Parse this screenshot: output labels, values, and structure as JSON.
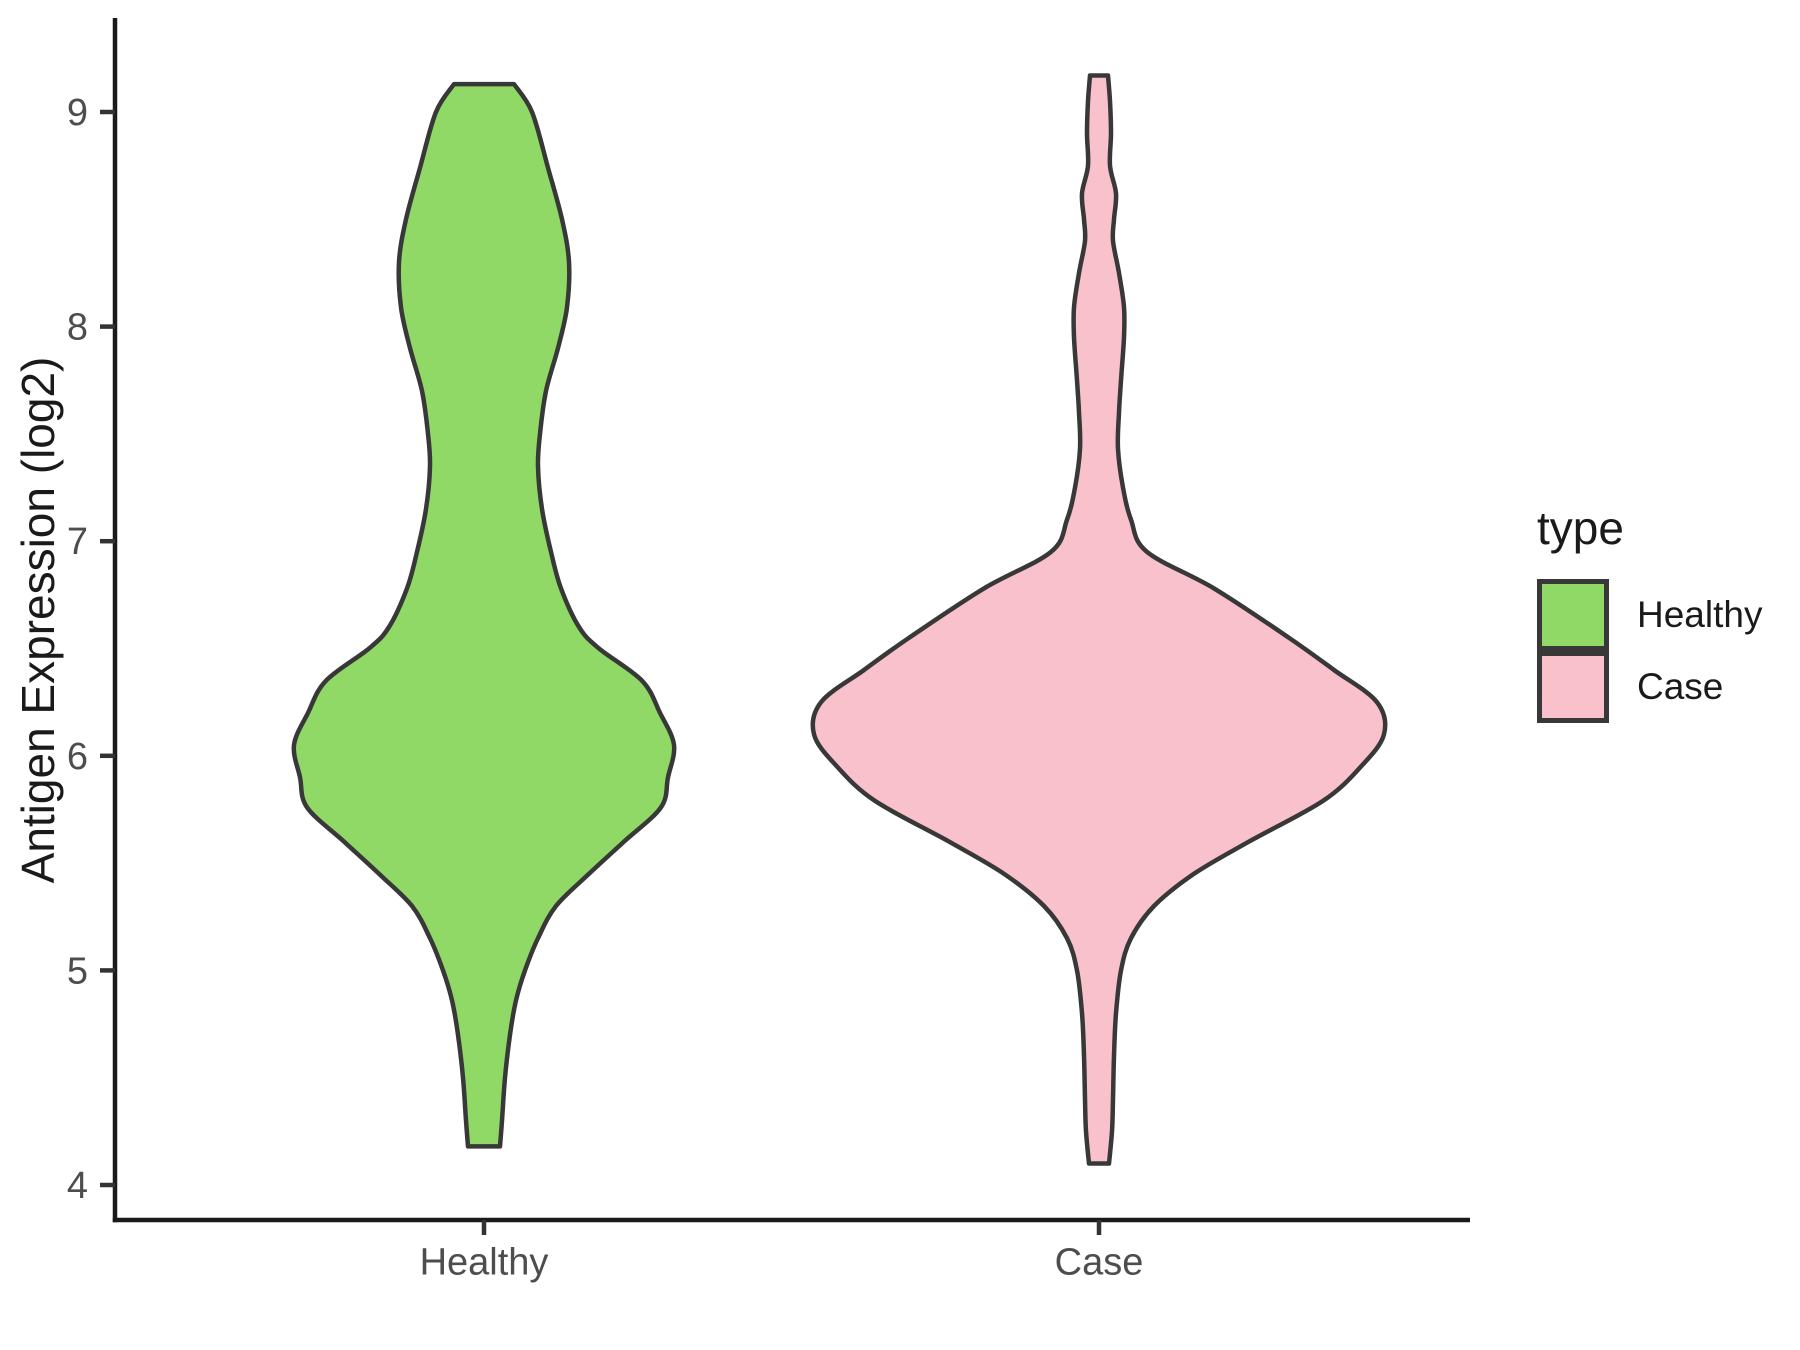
{
  "figure": {
    "background": "#ffffff"
  },
  "axes": {
    "y_title": "Antigen Expression (log2)",
    "y_tick_values": [
      4,
      5,
      6,
      7,
      8,
      9
    ],
    "x_categories": [
      "Healthy",
      "Case"
    ],
    "axis_line_color": "#1a1a1a",
    "tick_mark_color": "#333333",
    "tick_label_color": "#4d4d4d",
    "axis_title_color": "#1a1a1a"
  },
  "legend": {
    "title": "type",
    "items": [
      {
        "label": "Healthy",
        "color": "#90d966"
      },
      {
        "label": "Case",
        "color": "#f8c1cc"
      }
    ],
    "key_border_color": "#383838"
  },
  "chart_data": {
    "type": "violin",
    "title": "",
    "xlabel": "",
    "ylabel": "Antigen Expression (log2)",
    "ylim": [
      3.84,
      9.43
    ],
    "y_ticks": [
      4,
      5,
      6,
      7,
      8,
      9
    ],
    "categories": [
      "Healthy",
      "Case"
    ],
    "outline_color": "#383838",
    "outline_width": 4.5,
    "legend_position": "right",
    "grid": false,
    "series": [
      {
        "name": "Healthy",
        "fill": "#90d966",
        "flat_top_value": 9.13,
        "flat_bottom_value": 4.18,
        "profile": [
          [
            9.13,
            30
          ],
          [
            9.0,
            48
          ],
          [
            8.74,
            64
          ],
          [
            8.5,
            78
          ],
          [
            8.3,
            85
          ],
          [
            8.09,
            83
          ],
          [
            7.9,
            74
          ],
          [
            7.7,
            62
          ],
          [
            7.5,
            56
          ],
          [
            7.35,
            54
          ],
          [
            7.15,
            58
          ],
          [
            6.95,
            67
          ],
          [
            6.78,
            77
          ],
          [
            6.6,
            95
          ],
          [
            6.5,
            115
          ],
          [
            6.35,
            158
          ],
          [
            6.2,
            176
          ],
          [
            6.05,
            190
          ],
          [
            5.9,
            184
          ],
          [
            5.76,
            177
          ],
          [
            5.6,
            140
          ],
          [
            5.45,
            105
          ],
          [
            5.3,
            72
          ],
          [
            5.15,
            54
          ],
          [
            5.0,
            41
          ],
          [
            4.86,
            32
          ],
          [
            4.7,
            26
          ],
          [
            4.5,
            21
          ],
          [
            4.3,
            18
          ],
          [
            4.18,
            16
          ]
        ]
      },
      {
        "name": "Case",
        "fill": "#f8c1cc",
        "flat_top_value": 9.17,
        "flat_bottom_value": 4.1,
        "profile": [
          [
            9.17,
            9
          ],
          [
            9.05,
            11
          ],
          [
            8.9,
            12
          ],
          [
            8.75,
            11
          ],
          [
            8.62,
            17
          ],
          [
            8.5,
            15
          ],
          [
            8.4,
            14
          ],
          [
            8.25,
            20
          ],
          [
            8.09,
            25
          ],
          [
            7.95,
            25
          ],
          [
            7.75,
            22
          ],
          [
            7.6,
            20
          ],
          [
            7.43,
            19
          ],
          [
            7.25,
            24
          ],
          [
            7.1,
            32
          ],
          [
            6.95,
            48
          ],
          [
            6.78,
            115
          ],
          [
            6.55,
            190
          ],
          [
            6.4,
            235
          ],
          [
            6.25,
            278
          ],
          [
            6.1,
            285
          ],
          [
            5.95,
            262
          ],
          [
            5.79,
            224
          ],
          [
            5.6,
            150
          ],
          [
            5.45,
            95
          ],
          [
            5.3,
            55
          ],
          [
            5.15,
            32
          ],
          [
            5.0,
            22
          ],
          [
            4.8,
            17
          ],
          [
            4.6,
            15
          ],
          [
            4.4,
            14
          ],
          [
            4.25,
            13
          ],
          [
            4.1,
            10
          ]
        ]
      }
    ]
  }
}
